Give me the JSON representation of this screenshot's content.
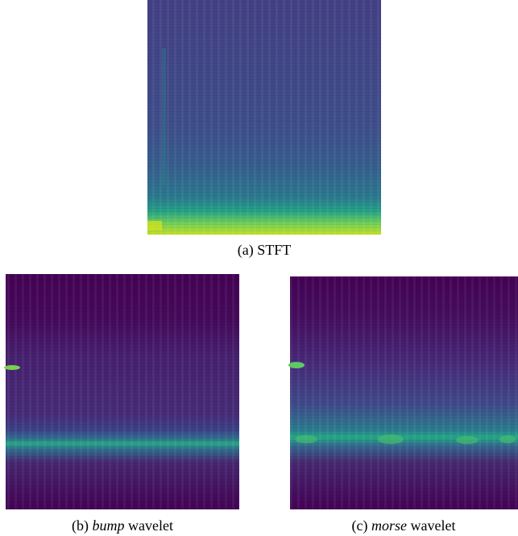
{
  "figure": {
    "panels": [
      {
        "label": "(a)",
        "text": "STFT"
      },
      {
        "label": "(b)",
        "emphasis": "bump",
        "text": "wavelet"
      },
      {
        "label": "(c)",
        "emphasis": "morse",
        "text": "wavelet"
      }
    ]
  }
}
